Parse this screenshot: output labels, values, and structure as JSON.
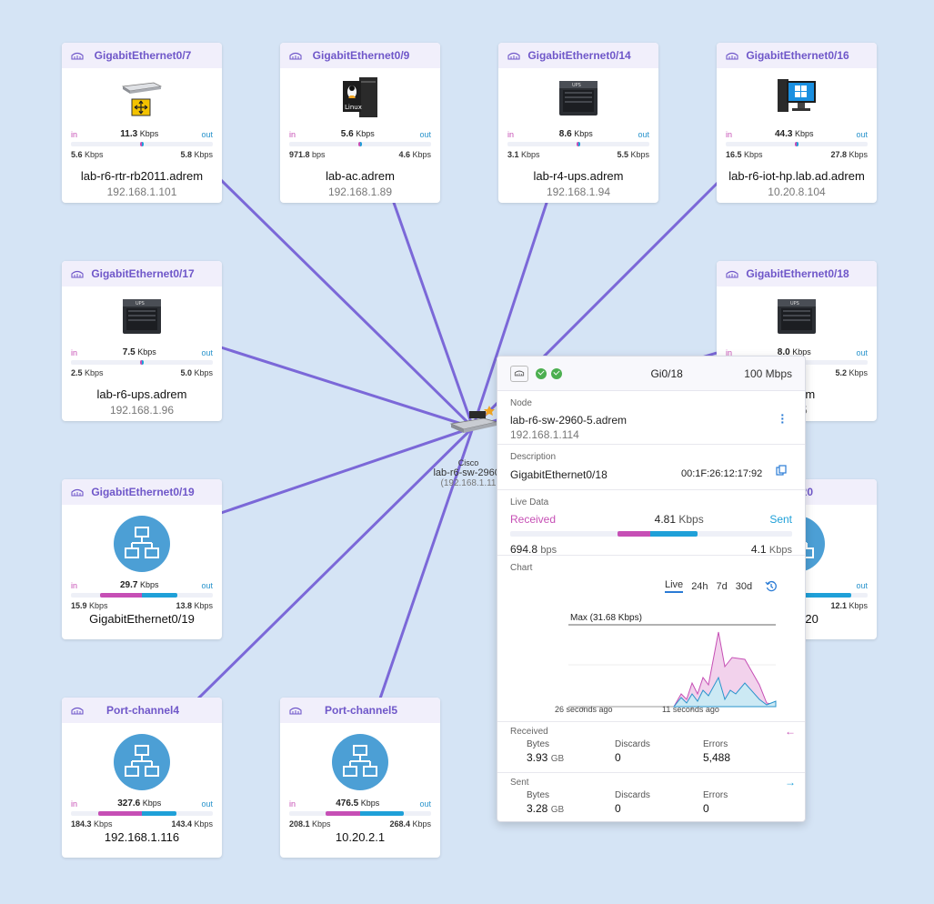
{
  "nodes": [
    {
      "iface": "GigabitEthernet0/7",
      "icon": "router-icon",
      "in": {
        "value": "11.3",
        "unit": "Kbps"
      },
      "rx": {
        "value": "5.6",
        "unit": "Kbps"
      },
      "tx": {
        "value": "5.8",
        "unit": "Kbps"
      },
      "rx_frac": 0.49,
      "tx_frac": 0.51,
      "name": "lab-r6-rtr-rb2011.adrem",
      "ip": "192.168.1.101"
    },
    {
      "iface": "GigabitEthernet0/9",
      "icon": "linux-server-icon",
      "in": {
        "value": "5.6",
        "unit": "Kbps"
      },
      "rx": {
        "value": "971.8",
        "unit": "bps"
      },
      "tx": {
        "value": "4.6",
        "unit": "Kbps"
      },
      "rx_frac": 0.17,
      "tx_frac": 0.83,
      "name": "lab-ac.adrem",
      "ip": "192.168.1.89"
    },
    {
      "iface": "GigabitEthernet0/14",
      "icon": "ups-icon",
      "in": {
        "value": "8.6",
        "unit": "Kbps"
      },
      "rx": {
        "value": "3.1",
        "unit": "Kbps"
      },
      "tx": {
        "value": "5.5",
        "unit": "Kbps"
      },
      "rx_frac": 0.36,
      "tx_frac": 0.64,
      "name": "lab-r4-ups.adrem",
      "ip": "192.168.1.94"
    },
    {
      "iface": "GigabitEthernet0/16",
      "icon": "windows-pc-icon",
      "in": {
        "value": "44.3",
        "unit": "Kbps"
      },
      "rx": {
        "value": "16.5",
        "unit": "Kbps"
      },
      "tx": {
        "value": "27.8",
        "unit": "Kbps"
      },
      "rx_frac": 0.37,
      "tx_frac": 0.63,
      "name": "lab-r6-iot-hp.lab.ad.adrem",
      "ip": "10.20.8.104"
    },
    {
      "iface": "GigabitEthernet0/17",
      "icon": "ups-icon",
      "in": {
        "value": "7.5",
        "unit": "Kbps"
      },
      "rx": {
        "value": "2.5",
        "unit": "Kbps"
      },
      "tx": {
        "value": "5.0",
        "unit": "Kbps"
      },
      "rx_frac": 0.33,
      "tx_frac": 0.67,
      "name": "lab-r6-ups.adrem",
      "ip": "192.168.1.96"
    },
    {
      "iface": "GigabitEthernet0/18",
      "icon": "ups-icon",
      "in": {
        "value": "8.0",
        "unit": "Kbps"
      },
      "rx": {
        "value": "",
        "unit": ""
      },
      "tx": {
        "value": "5.2",
        "unit": "Kbps"
      },
      "rx_frac": 0.35,
      "tx_frac": 0.65,
      "name": ".adrem",
      "ip": "1.95"
    },
    {
      "iface": "GigabitEthernet0/19",
      "icon": "network-icon",
      "in": {
        "value": "29.7",
        "unit": "Kbps"
      },
      "rx": {
        "value": "15.9",
        "unit": "Kbps"
      },
      "tx": {
        "value": "13.8",
        "unit": "Kbps"
      },
      "rx_frac": 0.54,
      "tx_frac": 0.46,
      "name": "GigabitEthernet0/19",
      "ip": ""
    },
    {
      "iface": "et0/20",
      "icon": "network-icon",
      "in": {
        "value": "",
        "unit": "ps"
      },
      "rx": {
        "value": "",
        "unit": ""
      },
      "tx": {
        "value": "12.1",
        "unit": "Kbps"
      },
      "rx_frac": 0.3,
      "tx_frac": 0.7,
      "name": "rnet0/20",
      "ip": ""
    },
    {
      "iface": "Port-channel4",
      "icon": "network-icon",
      "in": {
        "value": "327.6",
        "unit": "Kbps"
      },
      "rx": {
        "value": "184.3",
        "unit": "Kbps"
      },
      "tx": {
        "value": "143.4",
        "unit": "Kbps"
      },
      "rx_frac": 0.56,
      "tx_frac": 0.44,
      "name": "192.168.1.116",
      "ip": ""
    },
    {
      "iface": "Port-channel5",
      "icon": "network-icon",
      "in": {
        "value": "476.5",
        "unit": "Kbps"
      },
      "rx": {
        "value": "208.1",
        "unit": "Kbps"
      },
      "tx": {
        "value": "268.4",
        "unit": "Kbps"
      },
      "rx_frac": 0.44,
      "tx_frac": 0.56,
      "name": "10.20.2.1",
      "ip": ""
    }
  ],
  "labels": {
    "in": "in",
    "out": "out"
  },
  "center": {
    "vendor": "Cisco",
    "name": "lab-r6-sw-2960-",
    "ip": "(192.168.1.11"
  },
  "popup": {
    "port": "Gi0/18",
    "speed": "100 Mbps",
    "node_label": "Node",
    "node_name": "lab-r6-sw-2960-5.adrem",
    "node_ip": "192.168.1.114",
    "desc_label": "Description",
    "desc": "GigabitEthernet0/18",
    "mac": "00:1F:26:12:17:92",
    "live_label": "Live Data",
    "received_label": "Received",
    "sent_label": "Sent",
    "live_total": "4.81",
    "live_total_unit": "Kbps",
    "live_rx": "694.8",
    "live_rx_unit": "bps",
    "live_tx": "4.1",
    "live_tx_unit": "Kbps",
    "live_rx_frac": 0.14,
    "chart_label": "Chart",
    "tabs": [
      "Live",
      "24h",
      "7d",
      "30d"
    ],
    "max_label": "Max (31.68 Kbps)",
    "x_labels": [
      "26 seconds ago",
      "11 seconds ago"
    ],
    "received": {
      "title": "Received",
      "bytes_label": "Bytes",
      "bytes": "3.93",
      "bytes_unit": "GB",
      "discards_label": "Discards",
      "discards": "0",
      "errors_label": "Errors",
      "errors": "5,488"
    },
    "sent": {
      "title": "Sent",
      "bytes_label": "Bytes",
      "bytes": "3.28",
      "bytes_unit": "GB",
      "discards_label": "Discards",
      "discards": "0",
      "errors_label": "Errors",
      "errors": "0"
    }
  },
  "colors": {
    "link": "#7b68d8",
    "received": "#c64fb5",
    "sent": "#1fa0d8",
    "accent": "#6f57c9"
  }
}
